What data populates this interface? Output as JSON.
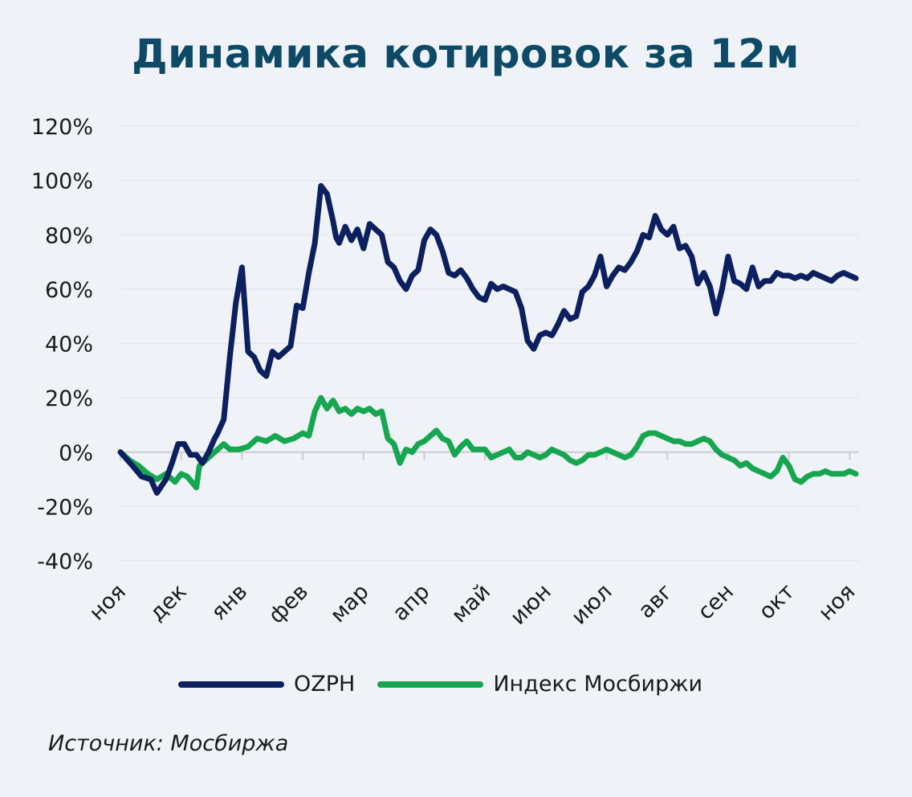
{
  "title": "Динамика котировок за 12м",
  "source": "Источник: Мосбиржа",
  "colors": {
    "background": "#eff3f8",
    "title": "#0e4a66",
    "ozph": "#0c1f5e",
    "index": "#17a650",
    "grid": "#e3e7ec",
    "axis": "#c9cdd2"
  },
  "chart_data": {
    "type": "line",
    "title": "Динамика котировок за 12м",
    "xlabel": "",
    "ylabel": "",
    "ylim": [
      -40,
      120
    ],
    "yticks": [
      -40,
      -20,
      0,
      20,
      40,
      60,
      80,
      100,
      120
    ],
    "ytick_labels": [
      "-40%",
      "-20%",
      "0%",
      "20%",
      "40%",
      "60%",
      "80%",
      "100%",
      "120%"
    ],
    "categories": [
      "ноя",
      "дек",
      "янв",
      "фев",
      "мар",
      "апр",
      "май",
      "июн",
      "июл",
      "авг",
      "сен",
      "окт",
      "ноя"
    ],
    "legend_position": "bottom",
    "grid": true,
    "series": [
      {
        "name": "OZPH",
        "color": "#0c1f5e",
        "x": [
          0,
          0.2,
          0.35,
          0.5,
          0.6,
          0.75,
          0.85,
          0.95,
          1.05,
          1.15,
          1.25,
          1.35,
          1.45,
          1.55,
          1.6,
          1.7,
          1.8,
          1.9,
          2.0,
          2.1,
          2.2,
          2.3,
          2.4,
          2.5,
          2.6,
          2.7,
          2.8,
          2.9,
          3.0,
          3.1,
          3.2,
          3.3,
          3.4,
          3.5,
          3.55,
          3.6,
          3.65,
          3.7,
          3.8,
          3.9,
          4.0,
          4.1,
          4.2,
          4.3,
          4.4,
          4.5,
          4.6,
          4.7,
          4.8,
          4.9,
          5.0,
          5.1,
          5.2,
          5.3,
          5.4,
          5.5,
          5.6,
          5.7,
          5.8,
          5.9,
          6.0,
          6.1,
          6.2,
          6.3,
          6.4,
          6.5,
          6.6,
          6.7,
          6.8,
          6.9,
          7.0,
          7.1,
          7.2,
          7.3,
          7.4,
          7.5,
          7.6,
          7.7,
          7.8,
          7.9,
          8.0,
          8.1,
          8.2,
          8.3,
          8.4,
          8.5,
          8.6,
          8.7,
          8.8,
          8.9,
          9.0,
          9.1,
          9.2,
          9.3,
          9.4,
          9.5,
          9.6,
          9.7,
          9.8,
          9.9,
          10.0,
          10.1,
          10.2,
          10.3,
          10.4,
          10.5,
          10.6,
          10.7,
          10.8,
          10.9,
          11.0,
          11.1,
          11.2,
          11.3,
          11.4,
          11.5,
          11.6,
          11.7,
          11.8,
          11.9,
          12.0,
          12.1
        ],
        "values": [
          0,
          -5,
          -9,
          -10,
          -15,
          -10,
          -4,
          3,
          3,
          -1,
          -1,
          -4,
          0,
          5,
          7,
          12,
          35,
          55,
          68,
          37,
          35,
          30,
          28,
          37,
          35,
          37,
          39,
          54,
          53,
          66,
          77,
          98,
          95,
          85,
          79,
          77,
          80,
          83,
          78,
          82,
          75,
          84,
          82,
          80,
          70,
          68,
          63,
          60,
          65,
          67,
          78,
          82,
          80,
          74,
          66,
          65,
          67,
          64,
          60,
          57,
          56,
          62,
          60,
          61,
          60,
          59,
          53,
          41,
          38,
          43,
          44,
          43,
          47,
          52,
          49,
          50,
          59,
          61,
          65,
          72,
          61,
          65,
          68,
          67,
          70,
          74,
          80,
          79,
          87,
          82,
          80,
          83,
          75,
          76,
          72,
          62,
          66,
          61,
          51,
          60,
          72,
          63,
          62,
          60,
          68,
          61,
          63,
          63,
          66,
          65,
          65,
          64,
          65,
          64,
          66,
          65,
          64,
          63,
          65,
          66,
          65,
          64
        ],
        "note": "values traced from plotted line"
      },
      {
        "name": "Индекс Мосбиржи",
        "color": "#17a650",
        "x": [
          0,
          0.15,
          0.3,
          0.45,
          0.6,
          0.75,
          0.9,
          1.0,
          1.1,
          1.25,
          1.3,
          1.4,
          1.55,
          1.7,
          1.8,
          1.95,
          2.1,
          2.25,
          2.4,
          2.55,
          2.7,
          2.85,
          3.0,
          3.1,
          3.2,
          3.3,
          3.4,
          3.5,
          3.6,
          3.7,
          3.8,
          3.9,
          4.0,
          4.1,
          4.2,
          4.3,
          4.4,
          4.5,
          4.6,
          4.7,
          4.8,
          4.9,
          5.0,
          5.1,
          5.2,
          5.3,
          5.4,
          5.5,
          5.6,
          5.7,
          5.8,
          5.9,
          6.0,
          6.1,
          6.2,
          6.3,
          6.4,
          6.5,
          6.6,
          6.7,
          6.8,
          6.9,
          7.0,
          7.1,
          7.2,
          7.3,
          7.4,
          7.5,
          7.6,
          7.7,
          7.8,
          7.9,
          8.0,
          8.1,
          8.2,
          8.3,
          8.4,
          8.5,
          8.6,
          8.7,
          8.8,
          8.9,
          9.0,
          9.1,
          9.2,
          9.3,
          9.4,
          9.5,
          9.6,
          9.7,
          9.8,
          9.9,
          10.0,
          10.1,
          10.2,
          10.3,
          10.4,
          10.5,
          10.6,
          10.7,
          10.8,
          10.9,
          11.0,
          11.1,
          11.2,
          11.3,
          11.4,
          11.5,
          11.6,
          11.7,
          11.8,
          11.9,
          12.0,
          12.1
        ],
        "values": [
          0,
          -3,
          -5,
          -8,
          -10,
          -8,
          -11,
          -8,
          -9,
          -13,
          -5,
          -3,
          0,
          3,
          1,
          1,
          2,
          5,
          4,
          6,
          4,
          5,
          7,
          6,
          15,
          20,
          16,
          19,
          15,
          16,
          14,
          16,
          15,
          16,
          14,
          15,
          5,
          3,
          -4,
          1,
          0,
          3,
          4,
          6,
          8,
          5,
          4,
          -1,
          2,
          4,
          1,
          1,
          1,
          -2,
          -1,
          0,
          1,
          -2,
          -2,
          0,
          -1,
          -2,
          -1,
          1,
          0,
          -1,
          -3,
          -4,
          -3,
          -1,
          -1,
          0,
          1,
          0,
          -1,
          -2,
          -1,
          2,
          6,
          7,
          7,
          6,
          5,
          4,
          4,
          3,
          3,
          4,
          5,
          4,
          1,
          -1,
          -2,
          -3,
          -5,
          -4,
          -6,
          -7,
          -8,
          -9,
          -7,
          -2,
          -5,
          -10,
          -11,
          -9,
          -8,
          -8,
          -7,
          -8,
          -8,
          -8,
          -7,
          -8
        ],
        "note": "values traced from plotted line"
      }
    ]
  }
}
